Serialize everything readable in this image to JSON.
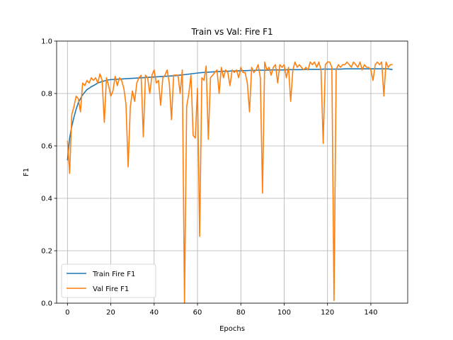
{
  "chart_data": {
    "type": "line",
    "title": "Train vs Val: Fire F1",
    "xlabel": "Epochs",
    "ylabel": "F1",
    "xlim": [
      -5,
      157
    ],
    "ylim": [
      0,
      1
    ],
    "xticks": [
      0,
      20,
      40,
      60,
      80,
      100,
      120,
      140
    ],
    "yticks": [
      0.0,
      0.2,
      0.4,
      0.6,
      0.8,
      1.0
    ],
    "grid": true,
    "legend_position": "lower-left",
    "series": [
      {
        "name": "Train Fire F1",
        "color": "#1f77b4",
        "x": [
          0,
          1,
          2,
          3,
          4,
          5,
          6,
          7,
          8,
          9,
          10,
          11,
          12,
          13,
          14,
          15,
          16,
          17,
          18,
          19,
          20,
          22,
          24,
          26,
          28,
          30,
          32,
          34,
          36,
          38,
          40,
          42,
          44,
          46,
          48,
          50,
          52,
          54,
          56,
          58,
          60,
          62,
          64,
          66,
          68,
          70,
          72,
          74,
          76,
          78,
          80,
          82,
          84,
          86,
          88,
          90,
          92,
          94,
          96,
          98,
          100,
          102,
          104,
          106,
          108,
          110,
          112,
          114,
          116,
          118,
          120,
          122,
          124,
          126,
          128,
          130,
          132,
          134,
          136,
          138,
          140,
          142,
          144,
          146,
          148,
          150
        ],
        "y": [
          0.545,
          0.63,
          0.675,
          0.71,
          0.74,
          0.765,
          0.78,
          0.795,
          0.805,
          0.815,
          0.82,
          0.826,
          0.83,
          0.835,
          0.84,
          0.843,
          0.846,
          0.848,
          0.85,
          0.852,
          0.853,
          0.854,
          0.855,
          0.856,
          0.857,
          0.858,
          0.859,
          0.86,
          0.861,
          0.862,
          0.863,
          0.864,
          0.865,
          0.866,
          0.867,
          0.868,
          0.87,
          0.872,
          0.874,
          0.876,
          0.878,
          0.88,
          0.881,
          0.882,
          0.883,
          0.884,
          0.885,
          0.885,
          0.886,
          0.886,
          0.887,
          0.887,
          0.888,
          0.888,
          0.889,
          0.889,
          0.889,
          0.89,
          0.89,
          0.89,
          0.89,
          0.891,
          0.891,
          0.891,
          0.891,
          0.892,
          0.892,
          0.892,
          0.892,
          0.893,
          0.893,
          0.893,
          0.893,
          0.893,
          0.894,
          0.894,
          0.894,
          0.894,
          0.894,
          0.894,
          0.894,
          0.894,
          0.894,
          0.894,
          0.894,
          0.891
        ]
      },
      {
        "name": "Val Fire F1",
        "color": "#ff7f0e",
        "x": [
          0,
          1,
          2,
          3,
          4,
          5,
          6,
          7,
          8,
          9,
          10,
          11,
          12,
          13,
          14,
          15,
          16,
          17,
          18,
          19,
          20,
          21,
          22,
          23,
          24,
          25,
          26,
          27,
          28,
          29,
          30,
          31,
          32,
          33,
          34,
          35,
          36,
          37,
          38,
          39,
          40,
          41,
          42,
          43,
          44,
          45,
          46,
          47,
          48,
          49,
          50,
          51,
          52,
          53,
          54,
          55,
          56,
          57,
          58,
          59,
          60,
          61,
          62,
          63,
          64,
          65,
          66,
          67,
          68,
          69,
          70,
          71,
          72,
          73,
          74,
          75,
          76,
          77,
          78,
          79,
          80,
          81,
          82,
          83,
          84,
          85,
          86,
          87,
          88,
          89,
          90,
          91,
          92,
          93,
          94,
          95,
          96,
          97,
          98,
          99,
          100,
          101,
          102,
          103,
          104,
          105,
          106,
          107,
          108,
          109,
          110,
          111,
          112,
          113,
          114,
          115,
          116,
          117,
          118,
          119,
          120,
          121,
          122,
          123,
          124,
          125,
          126,
          127,
          128,
          129,
          130,
          131,
          132,
          133,
          134,
          135,
          136,
          137,
          138,
          139,
          140,
          141,
          142,
          143,
          144,
          145,
          146,
          147,
          148,
          149,
          150
        ],
        "y": [
          0.62,
          0.495,
          0.72,
          0.75,
          0.79,
          0.78,
          0.73,
          0.84,
          0.83,
          0.85,
          0.84,
          0.86,
          0.85,
          0.86,
          0.84,
          0.875,
          0.85,
          0.69,
          0.86,
          0.83,
          0.79,
          0.81,
          0.865,
          0.83,
          0.86,
          0.85,
          0.82,
          0.76,
          0.52,
          0.75,
          0.81,
          0.77,
          0.84,
          0.86,
          0.87,
          0.635,
          0.87,
          0.86,
          0.8,
          0.87,
          0.89,
          0.84,
          0.85,
          0.755,
          0.86,
          0.87,
          0.89,
          0.84,
          0.7,
          0.87,
          0.87,
          0.87,
          0.8,
          0.89,
          0.0,
          0.75,
          0.8,
          0.87,
          0.64,
          0.63,
          0.82,
          0.255,
          0.86,
          0.85,
          0.905,
          0.625,
          0.86,
          0.87,
          0.88,
          0.89,
          0.8,
          0.9,
          0.86,
          0.89,
          0.88,
          0.83,
          0.89,
          0.88,
          0.89,
          0.86,
          0.9,
          0.88,
          0.88,
          0.84,
          0.73,
          0.9,
          0.88,
          0.89,
          0.91,
          0.86,
          0.42,
          0.92,
          0.89,
          0.9,
          0.87,
          0.9,
          0.91,
          0.84,
          0.91,
          0.9,
          0.91,
          0.86,
          0.9,
          0.77,
          0.89,
          0.92,
          0.9,
          0.91,
          0.9,
          0.89,
          0.9,
          0.89,
          0.92,
          0.91,
          0.92,
          0.9,
          0.92,
          0.89,
          0.61,
          0.91,
          0.92,
          0.92,
          0.9,
          0.01,
          0.89,
          0.91,
          0.9,
          0.91,
          0.91,
          0.92,
          0.91,
          0.9,
          0.92,
          0.91,
          0.9,
          0.92,
          0.89,
          0.91,
          0.9,
          0.9,
          0.89,
          0.85,
          0.91,
          0.92,
          0.91,
          0.92,
          0.79,
          0.92,
          0.9,
          0.91,
          0.91
        ]
      }
    ]
  }
}
